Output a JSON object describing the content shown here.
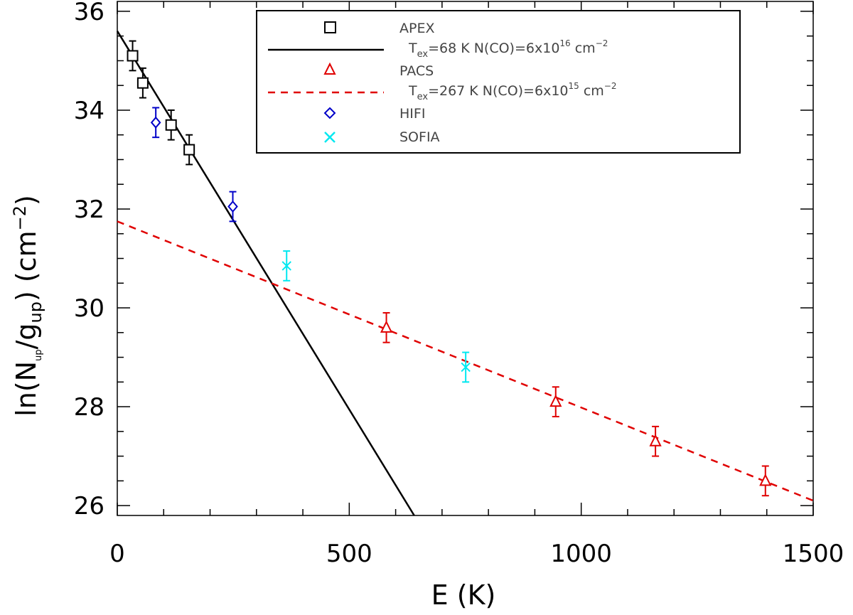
{
  "chart_data": {
    "type": "scatter",
    "xlabel": "E (K)",
    "ylabel": {
      "base": "ln(N",
      "sub1": "up",
      "mid": "/g",
      "sub2": "up",
      "tail": ")  (cm",
      "sup": "−2",
      "end": ")"
    },
    "xlim": [
      0,
      1500
    ],
    "ylim": [
      25.8,
      36.2
    ],
    "xticks": [
      0,
      500,
      1000,
      1500
    ],
    "yticks": [
      26,
      28,
      30,
      32,
      34,
      36
    ],
    "grid": false,
    "legend_position": "top-right",
    "series": [
      {
        "name": "APEX",
        "marker": "square",
        "color": "#000000",
        "points": [
          {
            "x": 33,
            "y": 35.1,
            "err": 0.3
          },
          {
            "x": 55,
            "y": 34.55,
            "err": 0.3
          },
          {
            "x": 116,
            "y": 33.7,
            "err": 0.3
          },
          {
            "x": 155,
            "y": 33.2,
            "err": 0.3
          }
        ]
      },
      {
        "name": "PACS",
        "marker": "triangle",
        "color": "#e00000",
        "points": [
          {
            "x": 580,
            "y": 29.6,
            "err": 0.3
          },
          {
            "x": 945,
            "y": 28.1,
            "err": 0.3
          },
          {
            "x": 1160,
            "y": 27.3,
            "err": 0.3
          },
          {
            "x": 1397,
            "y": 26.5,
            "err": 0.3
          }
        ]
      },
      {
        "name": "HIFI",
        "marker": "diamond",
        "color": "#0000c8",
        "points": [
          {
            "x": 83,
            "y": 33.75,
            "err": 0.3
          },
          {
            "x": 249,
            "y": 32.05,
            "err": 0.3
          }
        ]
      },
      {
        "name": "SOFIA",
        "marker": "x",
        "color": "#00e8f0",
        "points": [
          {
            "x": 365,
            "y": 30.85,
            "err": 0.3
          },
          {
            "x": 751,
            "y": 28.8,
            "err": 0.3
          }
        ]
      }
    ],
    "fits": [
      {
        "name": "APEX fit",
        "style": "solid",
        "color": "#000000",
        "label": {
          "pre": "T",
          "sub": "ex",
          "main": "=68 K  N(CO)=6x10",
          "sup": "16",
          "unit": " cm",
          "unit_sup": "−2"
        },
        "x": [
          0,
          640
        ],
        "y": [
          35.6,
          25.8
        ]
      },
      {
        "name": "PACS fit",
        "style": "dashed",
        "color": "#e00000",
        "label": {
          "pre": "T",
          "sub": "ex",
          "main": "=267 K  N(CO)=6x10",
          "sup": "15",
          "unit": " cm",
          "unit_sup": "−2"
        },
        "x": [
          0,
          1500
        ],
        "y": [
          31.75,
          26.1
        ]
      }
    ]
  }
}
